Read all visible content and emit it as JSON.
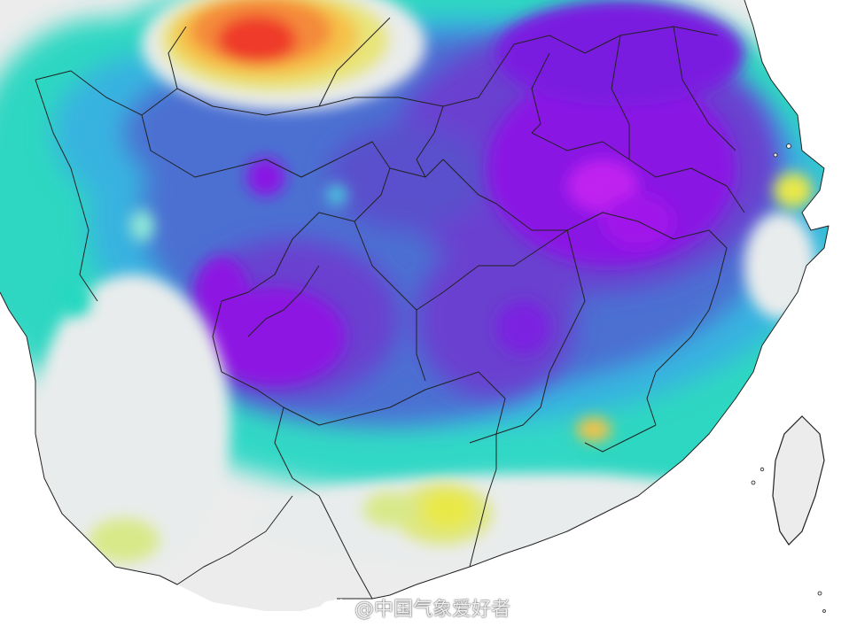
{
  "watermark": {
    "text": "@中国气象爱好者",
    "icon": "weibo-logo-icon"
  },
  "map": {
    "region": "central-southern-china",
    "color_scale": [
      "#7a00e6",
      "#9b1fe0",
      "#6a3fd0",
      "#4f63cf",
      "#3f8fd8",
      "#38c6e0",
      "#22d8c0",
      "#8fe8d8",
      "#e9ecec",
      "#d8e98a",
      "#e9e84a",
      "#f6c64a",
      "#f48a3a",
      "#ef3b2c"
    ]
  }
}
